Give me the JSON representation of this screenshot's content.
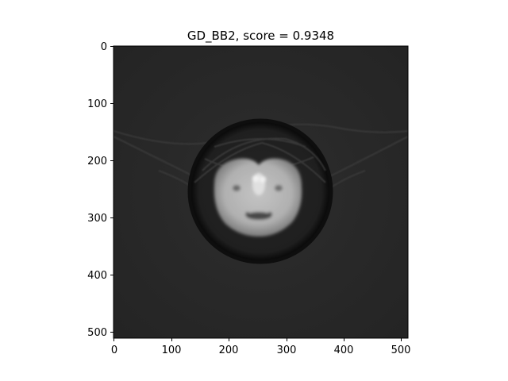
{
  "figure": {
    "title": "GD_BB2, score = 0.9348",
    "image_description_icon": "ct-slice-image",
    "axes": {
      "x_ticks": [
        "0",
        "100",
        "200",
        "300",
        "400",
        "500"
      ],
      "y_ticks": [
        "0",
        "100",
        "200",
        "300",
        "400",
        "500"
      ],
      "x_range": [
        0,
        512
      ],
      "y_range": [
        0,
        512
      ]
    },
    "colors": {
      "background": "#2a2a2a",
      "ring": "#0d0d0d",
      "tissue": "#bfbfbf"
    }
  }
}
